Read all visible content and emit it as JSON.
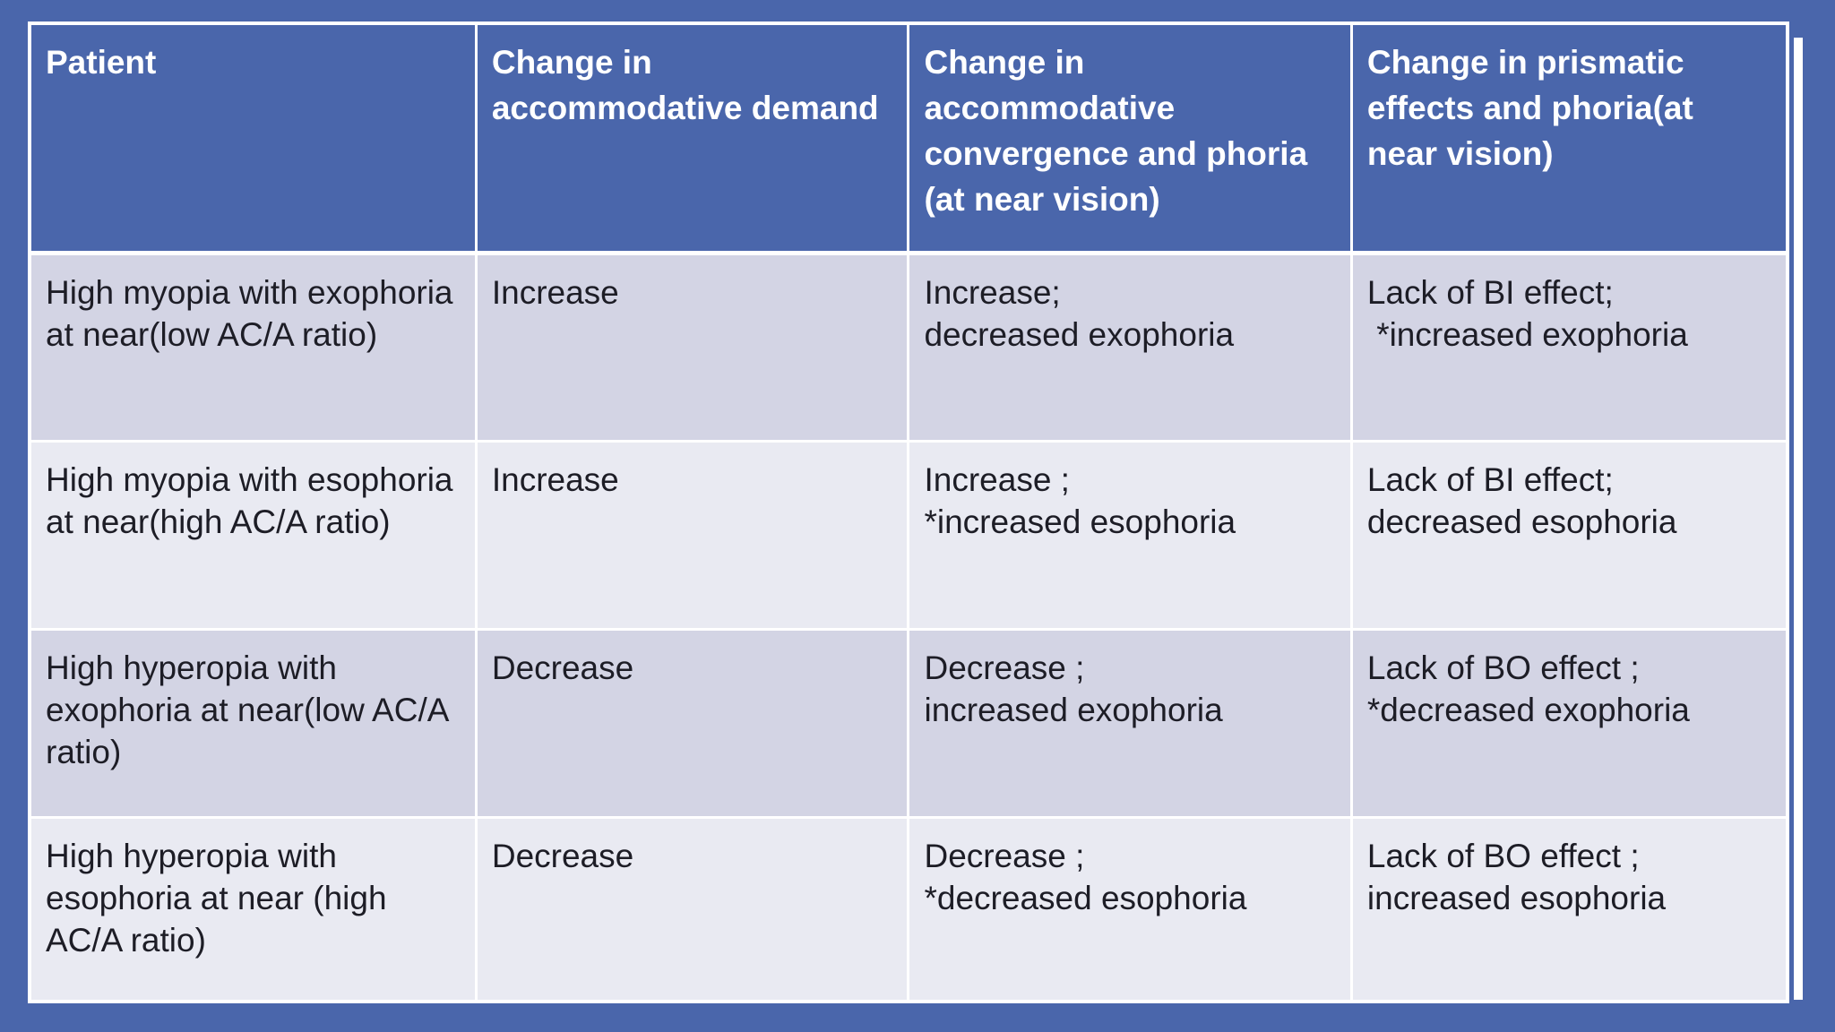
{
  "page": {
    "background_color": "#4A66AB",
    "border_color": "#FFFFFF"
  },
  "table": {
    "header": {
      "bg_color": "#4A66AB",
      "text_color": "#FFFFFF",
      "columns": [
        "Patient",
        "Change in accommodative demand",
        "Change in accommodative convergence and phoria (at near vision)",
        "Change in prismatic effects and phoria(at near vision)"
      ]
    },
    "row_colors": {
      "odd": "#D3D4E4",
      "even": "#E9EAF2"
    },
    "body_text_color": "#1D1D26",
    "rows": [
      {
        "cells": [
          "High myopia with exophoria at near(low AC/A ratio)",
          "Increase",
          "Increase;\ndecreased exophoria",
          "Lack of BI effect;\n *increased exophoria"
        ]
      },
      {
        "cells": [
          "High myopia with esophoria at near(high AC/A ratio)",
          "Increase",
          "Increase ;\n*increased esophoria",
          "Lack of BI effect;\ndecreased esophoria"
        ]
      },
      {
        "cells": [
          "High hyperopia with exophoria at near(low AC/A ratio)",
          "Decrease",
          "Decrease ;\nincreased exophoria",
          "Lack of BO effect ;\n*decreased exophoria"
        ]
      },
      {
        "cells": [
          "High hyperopia with esophoria at near (high AC/A ratio)",
          "Decrease",
          "Decrease ;\n*decreased esophoria",
          "Lack of BO effect ;\nincreased esophoria"
        ]
      }
    ]
  }
}
